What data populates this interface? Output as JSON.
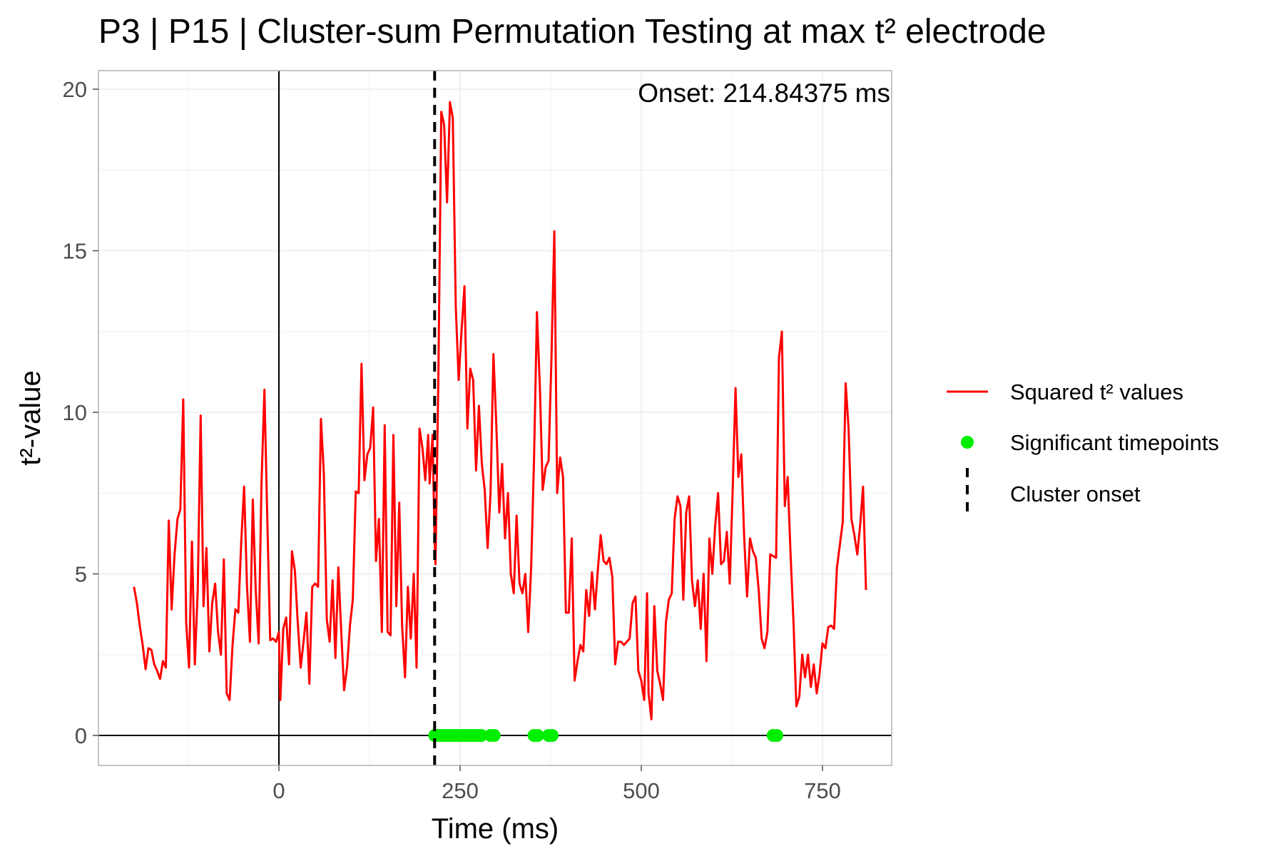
{
  "chart_data": {
    "type": "line",
    "title": "P3 | P15 | Cluster-sum Permutation Testing at max t² electrode",
    "xlabel": "Time (ms)",
    "ylabel": "t²-value",
    "xlim": [
      -100,
      850
    ],
    "ylim": [
      -0.9,
      20.5
    ],
    "x_ticks": [
      0,
      250,
      500,
      750
    ],
    "y_ticks": [
      0,
      5,
      10,
      15,
      20
    ],
    "grid": true,
    "annotation": "Onset: 214.84375 ms",
    "onset_ms": 214.84375,
    "legend": {
      "placement": "right",
      "entries": [
        {
          "label": "Squared t² values",
          "kind": "line",
          "color": "#ff0000"
        },
        {
          "label": "Significant timepoints",
          "kind": "point",
          "color": "#00ee00"
        },
        {
          "label": "Cluster onset",
          "kind": "dashed-line",
          "color": "#000000"
        }
      ]
    },
    "colors": {
      "line": "#ff0000",
      "points": "#00ee00",
      "onset": "#000000"
    },
    "series": [
      {
        "name": "Squared t² values",
        "points": [
          [
            -200,
            4.6
          ],
          [
            -196,
            4.1
          ],
          [
            -192,
            3.4
          ],
          [
            -188,
            2.8
          ],
          [
            -184,
            2.05
          ],
          [
            -180,
            2.7
          ],
          [
            -176,
            2.65
          ],
          [
            -172,
            2.2
          ],
          [
            -168,
            2.0
          ],
          [
            -164,
            1.75
          ],
          [
            -160,
            2.3
          ],
          [
            -156,
            2.1
          ],
          [
            -152,
            6.65
          ],
          [
            -148,
            3.9
          ],
          [
            -144,
            5.6
          ],
          [
            -140,
            6.7
          ],
          [
            -136,
            7.0
          ],
          [
            -132,
            10.4
          ],
          [
            -128,
            3.5
          ],
          [
            -124,
            2.1
          ],
          [
            -120,
            6.0
          ],
          [
            -116,
            2.2
          ],
          [
            -112,
            4.5
          ],
          [
            -108,
            9.9
          ],
          [
            -104,
            4.0
          ],
          [
            -100,
            5.8
          ],
          [
            -96,
            2.6
          ],
          [
            -92,
            4.1
          ],
          [
            -88,
            4.7
          ],
          [
            -84,
            3.2
          ],
          [
            -80,
            2.5
          ],
          [
            -76,
            5.45
          ],
          [
            -72,
            1.3
          ],
          [
            -68,
            1.1
          ],
          [
            -64,
            2.8
          ],
          [
            -60,
            3.9
          ],
          [
            -56,
            3.8
          ],
          [
            -52,
            6.0
          ],
          [
            -48,
            7.7
          ],
          [
            -44,
            4.6
          ],
          [
            -40,
            2.9
          ],
          [
            -36,
            7.3
          ],
          [
            -32,
            4.5
          ],
          [
            -28,
            2.85
          ],
          [
            -24,
            7.8
          ],
          [
            -20,
            10.7
          ],
          [
            -16,
            6.7
          ],
          [
            -12,
            2.95
          ],
          [
            -8,
            3.0
          ],
          [
            -4,
            2.9
          ],
          [
            0,
            3.2
          ],
          [
            2,
            1.1
          ],
          [
            6,
            3.3
          ],
          [
            10,
            3.65
          ],
          [
            14,
            2.2
          ],
          [
            18,
            5.7
          ],
          [
            22,
            5.1
          ],
          [
            26,
            3.5
          ],
          [
            30,
            2.1
          ],
          [
            34,
            2.9
          ],
          [
            38,
            3.8
          ],
          [
            42,
            1.6
          ],
          [
            46,
            4.6
          ],
          [
            50,
            4.7
          ],
          [
            54,
            4.6
          ],
          [
            58,
            9.8
          ],
          [
            62,
            8.1
          ],
          [
            66,
            3.6
          ],
          [
            70,
            2.9
          ],
          [
            74,
            4.8
          ],
          [
            78,
            2.4
          ],
          [
            82,
            5.2
          ],
          [
            86,
            3.2
          ],
          [
            90,
            1.4
          ],
          [
            94,
            2.1
          ],
          [
            98,
            3.4
          ],
          [
            102,
            4.2
          ],
          [
            106,
            7.55
          ],
          [
            110,
            7.5
          ],
          [
            114,
            11.5
          ],
          [
            118,
            7.9
          ],
          [
            122,
            8.7
          ],
          [
            126,
            8.9
          ],
          [
            130,
            10.15
          ],
          [
            134,
            5.4
          ],
          [
            138,
            6.7
          ],
          [
            142,
            3.2
          ],
          [
            146,
            9.6
          ],
          [
            150,
            3.2
          ],
          [
            154,
            3.1
          ],
          [
            158,
            9.3
          ],
          [
            162,
            4.0
          ],
          [
            166,
            7.2
          ],
          [
            170,
            3.4
          ],
          [
            174,
            1.8
          ],
          [
            178,
            4.6
          ],
          [
            182,
            3.0
          ],
          [
            186,
            5.0
          ],
          [
            190,
            2.1
          ],
          [
            194,
            9.5
          ],
          [
            198,
            8.9
          ],
          [
            202,
            7.9
          ],
          [
            206,
            9.3
          ],
          [
            208,
            7.8
          ],
          [
            212,
            9.3
          ],
          [
            214.84,
            6.0
          ],
          [
            216,
            5.3
          ],
          [
            220,
            11.0
          ],
          [
            224,
            19.3
          ],
          [
            228,
            18.9
          ],
          [
            232,
            16.5
          ],
          [
            236,
            19.6
          ],
          [
            240,
            19.1
          ],
          [
            244,
            13.3
          ],
          [
            248,
            11.0
          ],
          [
            252,
            12.5
          ],
          [
            256,
            13.9
          ],
          [
            260,
            9.5
          ],
          [
            264,
            11.35
          ],
          [
            268,
            11.0
          ],
          [
            272,
            8.2
          ],
          [
            276,
            10.2
          ],
          [
            280,
            8.4
          ],
          [
            284,
            7.6
          ],
          [
            288,
            5.8
          ],
          [
            292,
            7.5
          ],
          [
            296,
            11.8
          ],
          [
            300,
            9.6
          ],
          [
            304,
            6.9
          ],
          [
            308,
            8.4
          ],
          [
            312,
            6.1
          ],
          [
            316,
            7.5
          ],
          [
            320,
            5.0
          ],
          [
            324,
            4.4
          ],
          [
            328,
            6.8
          ],
          [
            332,
            4.7
          ],
          [
            336,
            4.4
          ],
          [
            340,
            5.0
          ],
          [
            344,
            3.2
          ],
          [
            348,
            5.2
          ],
          [
            352,
            8.5
          ],
          [
            356,
            13.1
          ],
          [
            360,
            10.8
          ],
          [
            364,
            7.6
          ],
          [
            368,
            8.3
          ],
          [
            372,
            8.5
          ],
          [
            376,
            11.6
          ],
          [
            380,
            15.6
          ],
          [
            384,
            7.5
          ],
          [
            388,
            8.6
          ],
          [
            392,
            8.0
          ],
          [
            396,
            3.8
          ],
          [
            400,
            3.8
          ],
          [
            404,
            6.1
          ],
          [
            408,
            1.7
          ],
          [
            412,
            2.3
          ],
          [
            416,
            2.8
          ],
          [
            420,
            2.6
          ],
          [
            424,
            4.5
          ],
          [
            428,
            3.7
          ],
          [
            432,
            5.05
          ],
          [
            436,
            3.9
          ],
          [
            440,
            5.1
          ],
          [
            444,
            6.2
          ],
          [
            448,
            5.4
          ],
          [
            452,
            5.3
          ],
          [
            456,
            5.5
          ],
          [
            460,
            4.9
          ],
          [
            464,
            2.2
          ],
          [
            468,
            2.9
          ],
          [
            472,
            2.9
          ],
          [
            476,
            2.8
          ],
          [
            480,
            2.9
          ],
          [
            484,
            3.0
          ],
          [
            488,
            4.1
          ],
          [
            492,
            4.3
          ],
          [
            496,
            2.0
          ],
          [
            500,
            1.7
          ],
          [
            504,
            1.1
          ],
          [
            508,
            4.4
          ],
          [
            510,
            1.3
          ],
          [
            514,
            0.5
          ],
          [
            518,
            4.0
          ],
          [
            522,
            2.0
          ],
          [
            526,
            1.6
          ],
          [
            530,
            1.1
          ],
          [
            534,
            3.5
          ],
          [
            538,
            4.2
          ],
          [
            542,
            4.4
          ],
          [
            546,
            6.7
          ],
          [
            550,
            7.4
          ],
          [
            554,
            7.1
          ],
          [
            558,
            4.2
          ],
          [
            562,
            6.9
          ],
          [
            566,
            7.4
          ],
          [
            570,
            4.8
          ],
          [
            574,
            4.0
          ],
          [
            578,
            4.8
          ],
          [
            582,
            3.3
          ],
          [
            586,
            5.0
          ],
          [
            590,
            2.3
          ],
          [
            594,
            6.1
          ],
          [
            598,
            5.0
          ],
          [
            602,
            6.5
          ],
          [
            606,
            7.5
          ],
          [
            610,
            5.3
          ],
          [
            614,
            5.4
          ],
          [
            618,
            6.3
          ],
          [
            622,
            4.7
          ],
          [
            626,
            7.5
          ],
          [
            630,
            10.75
          ],
          [
            634,
            8.0
          ],
          [
            638,
            8.7
          ],
          [
            642,
            6.1
          ],
          [
            646,
            4.3
          ],
          [
            650,
            6.1
          ],
          [
            654,
            5.7
          ],
          [
            658,
            5.5
          ],
          [
            662,
            4.5
          ],
          [
            666,
            3.0
          ],
          [
            670,
            2.7
          ],
          [
            674,
            3.2
          ],
          [
            678,
            5.6
          ],
          [
            682,
            5.55
          ],
          [
            686,
            5.5
          ],
          [
            690,
            11.7
          ],
          [
            694,
            12.5
          ],
          [
            698,
            7.1
          ],
          [
            702,
            8.0
          ],
          [
            706,
            5.6
          ],
          [
            710,
            3.5
          ],
          [
            714,
            0.9
          ],
          [
            718,
            1.2
          ],
          [
            722,
            2.5
          ],
          [
            726,
            1.8
          ],
          [
            730,
            2.5
          ],
          [
            734,
            1.5
          ],
          [
            738,
            2.2
          ],
          [
            742,
            1.3
          ],
          [
            746,
            1.9
          ],
          [
            750,
            2.85
          ],
          [
            754,
            2.7
          ],
          [
            758,
            3.35
          ],
          [
            762,
            3.4
          ],
          [
            766,
            3.3
          ],
          [
            770,
            5.2
          ],
          [
            774,
            5.9
          ],
          [
            778,
            6.6
          ],
          [
            782,
            10.9
          ],
          [
            786,
            9.5
          ],
          [
            790,
            6.7
          ],
          [
            794,
            6.2
          ],
          [
            798,
            5.6
          ],
          [
            802,
            6.5
          ],
          [
            806,
            7.7
          ],
          [
            810,
            4.5
          ]
        ]
      },
      {
        "name": "Significant timepoints",
        "y": 0,
        "x": [
          215,
          219,
          223,
          227,
          231,
          235,
          239,
          243,
          247,
          251,
          255,
          259,
          263,
          267,
          271,
          275,
          279,
          292,
          297,
          352,
          357,
          372,
          377,
          682,
          687
        ]
      }
    ]
  }
}
